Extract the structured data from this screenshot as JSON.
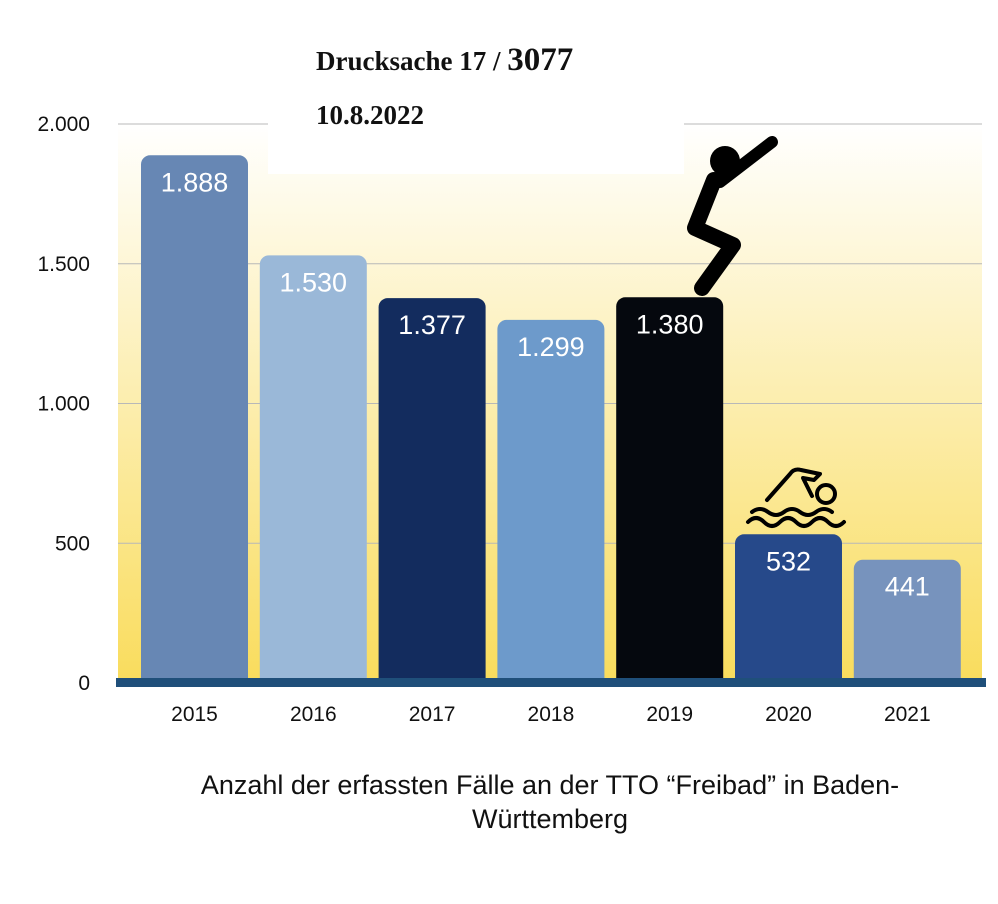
{
  "document": {
    "label": "Drucksache 17 / ",
    "number": "3077",
    "date": "10.8.2022"
  },
  "caption": "Anzahl der erfassten Fälle an der TTO “Freibad” in Baden-Württemberg",
  "colors": {
    "background_top": "#ffffff",
    "background_bottom": "#f9dc5c",
    "baseline": "#1f4f7a",
    "gridline": "#b8b8b8"
  },
  "icons": [
    "jumper-icon",
    "swimmer-icon"
  ],
  "chart_data": {
    "type": "bar",
    "categories": [
      "2015",
      "2016",
      "2017",
      "2018",
      "2019",
      "2020",
      "2021"
    ],
    "values": [
      1888,
      1530,
      1377,
      1299,
      1380,
      532,
      441
    ],
    "value_labels": [
      "1.888",
      "1.530",
      "1.377",
      "1.299",
      "1.380",
      "532",
      "441"
    ],
    "bar_colors": [
      "#6787b4",
      "#9ab8d8",
      "#132c5e",
      "#6d9acb",
      "#05080e",
      "#26498a",
      "#7793bd"
    ],
    "yticks": [
      0,
      500,
      1000,
      1500,
      2000
    ],
    "ytick_labels": [
      "0",
      "500",
      "1.000",
      "1.500",
      "2.000"
    ],
    "ylim": [
      0,
      2000
    ],
    "grid": true,
    "legend": "none"
  }
}
